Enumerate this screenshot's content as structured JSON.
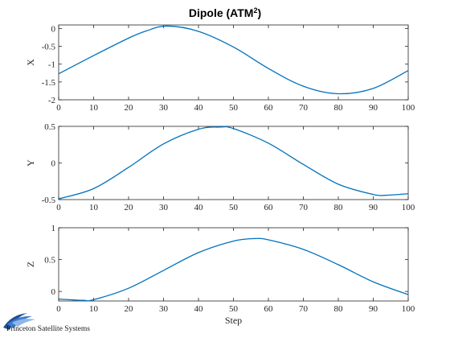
{
  "figure": {
    "title_main": "Dipole (ATM",
    "title_sup": "2",
    "title_end": ")",
    "series_color": "#0072BD",
    "logo_text": "Princeton Satellite Systems",
    "logo_colors": [
      "#1f4f8f",
      "#3d7bd0",
      "#8fb6e8"
    ]
  },
  "chart_data": [
    {
      "type": "line",
      "title": "Dipole (ATM²)",
      "xlabel": "",
      "ylabel": "X",
      "xlim": [
        0,
        100
      ],
      "ylim": [
        -2,
        0.1
      ],
      "xticks": [
        0,
        10,
        20,
        30,
        40,
        50,
        60,
        70,
        80,
        90,
        100
      ],
      "yticks": [
        -2,
        -1.5,
        -1,
        -0.5,
        0
      ],
      "ytick_labels": [
        "-2",
        "-1.5",
        "-1",
        "-0.5",
        "0"
      ],
      "grid": false,
      "x": [
        0,
        10,
        20,
        25,
        31,
        40,
        50,
        60,
        70,
        80,
        90,
        100
      ],
      "series": [
        {
          "values": [
            -1.27,
            -0.76,
            -0.27,
            -0.07,
            0.07,
            -0.08,
            -0.52,
            -1.12,
            -1.62,
            -1.83,
            -1.68,
            -1.18
          ]
        }
      ]
    },
    {
      "type": "line",
      "xlabel": "",
      "ylabel": "Y",
      "xlim": [
        0,
        100
      ],
      "ylim": [
        -0.5,
        0.5
      ],
      "xticks": [
        0,
        10,
        20,
        30,
        40,
        50,
        60,
        70,
        80,
        90,
        100
      ],
      "yticks": [
        -0.5,
        0,
        0.5
      ],
      "ytick_labels": [
        "-0.5",
        "0",
        "0.5"
      ],
      "grid": false,
      "x": [
        0,
        10,
        20,
        30,
        40,
        46,
        50,
        60,
        70,
        80,
        90,
        94,
        100
      ],
      "series": [
        {
          "values": [
            -0.49,
            -0.35,
            -0.06,
            0.26,
            0.46,
            0.49,
            0.47,
            0.27,
            -0.02,
            -0.29,
            -0.43,
            -0.44,
            -0.42
          ]
        }
      ]
    },
    {
      "type": "line",
      "xlabel": "Step",
      "ylabel": "Z",
      "xlim": [
        0,
        100
      ],
      "ylim": [
        -0.15,
        1
      ],
      "xticks": [
        0,
        10,
        20,
        30,
        40,
        50,
        60,
        70,
        80,
        90,
        100
      ],
      "yticks": [
        0,
        0.5,
        1
      ],
      "ytick_labels": [
        "0",
        "0.5",
        "1"
      ],
      "grid": false,
      "x": [
        0,
        7,
        10,
        20,
        30,
        40,
        50,
        56,
        60,
        70,
        80,
        90,
        100
      ],
      "series": [
        {
          "values": [
            -0.12,
            -0.14,
            -0.13,
            0.05,
            0.33,
            0.61,
            0.79,
            0.83,
            0.81,
            0.66,
            0.42,
            0.15,
            -0.05
          ]
        }
      ]
    }
  ]
}
